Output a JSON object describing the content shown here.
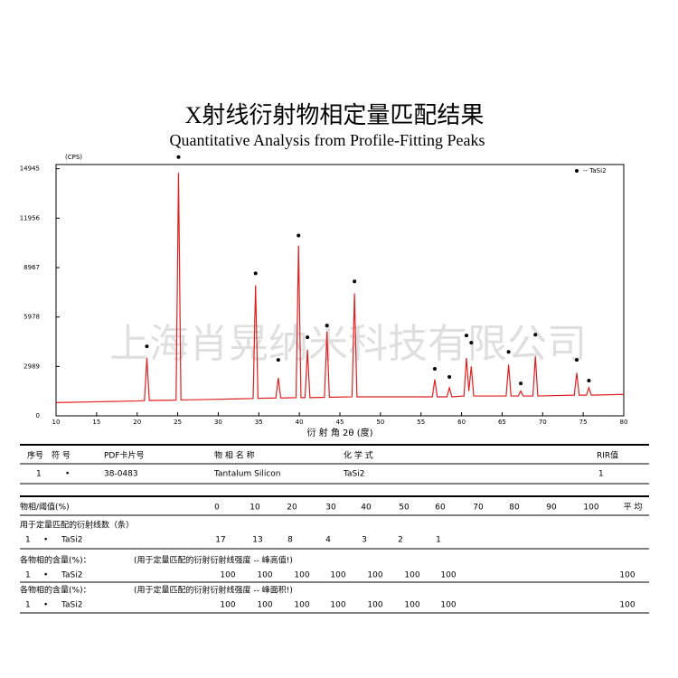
{
  "chart_data": {
    "type": "line",
    "title": "X射线衍射物相定量匹配结果",
    "subtitle": "Quantitative Analysis from Profile-Fitting Peaks",
    "x_label": "衍 射 角 2θ (度)",
    "y_label": "(CPS)",
    "xlim": [
      10,
      80
    ],
    "xticks": [
      10,
      15,
      20,
      25,
      30,
      35,
      40,
      45,
      50,
      55,
      60,
      65,
      70,
      75,
      80
    ],
    "ylim": [
      0,
      15200
    ],
    "yticks": [
      0,
      2989,
      5978,
      8967,
      11956,
      14945
    ],
    "legend": "top-right",
    "x": [
      10,
      15,
      20,
      20.9,
      21.2,
      21.5,
      24.8,
      25.1,
      25.4,
      30,
      34.3,
      34.6,
      34.9,
      37.1,
      37.4,
      37.7,
      39.6,
      39.9,
      40.2,
      40.7,
      41.0,
      41.3,
      43.1,
      43.4,
      43.7,
      46.5,
      46.8,
      47.1,
      52,
      56.4,
      56.7,
      57,
      58.2,
      58.5,
      58.8,
      60.3,
      60.6,
      60.9,
      61.2,
      61.5,
      65.5,
      65.8,
      66.1,
      67,
      67.3,
      67.6,
      68.8,
      69.1,
      69.4,
      73.9,
      74.2,
      74.5,
      75.4,
      75.7,
      76,
      80
    ],
    "series": [
      {
        "color": "#e02020",
        "values": [
          800,
          850,
          900,
          920,
          3500,
          930,
          950,
          14700,
          960,
          1000,
          1050,
          7900,
          1060,
          1080,
          2300,
          1080,
          1100,
          10300,
          1100,
          1100,
          4000,
          1100,
          1120,
          5100,
          1120,
          1150,
          7400,
          1150,
          1150,
          1150,
          2200,
          1150,
          1150,
          1700,
          1150,
          1200,
          3500,
          1500,
          3000,
          1200,
          1200,
          3100,
          1200,
          1200,
          1500,
          1200,
          1200,
          3600,
          1200,
          1250,
          2600,
          1250,
          1250,
          1700,
          1250,
          1300
        ]
      },
      {
        "name": "-- TaSi2",
        "type": "scatter",
        "color": "#000000",
        "x": [
          21.2,
          25.1,
          34.6,
          37.4,
          39.9,
          41.0,
          43.4,
          46.8,
          56.7,
          58.5,
          60.6,
          61.2,
          65.8,
          67.3,
          69.1,
          74.2,
          75.7
        ],
        "values": [
          4200,
          15650,
          8620,
          3380,
          10910,
          4750,
          5460,
          8130,
          2840,
          2350,
          4860,
          4420,
          3870,
          1960,
          4910,
          3380,
          2130
        ]
      }
    ]
  },
  "watermark": "上海肖晃纳米科技有限公司",
  "phase_table": {
    "headers": [
      "序号",
      "符 号",
      "PDF卡片号",
      "物 相 名 称",
      "化 学 式",
      "RIR值"
    ],
    "rows": [
      [
        1,
        "•",
        "38-0483",
        "Tantalum Silicon",
        "TaSi2",
        1
      ]
    ]
  },
  "thresholds": {
    "label": "物相/阈值(%)",
    "values": [
      0,
      10,
      20,
      30,
      40,
      50,
      60,
      70,
      80,
      90,
      100
    ],
    "average_label": "平 均"
  },
  "line_counts": {
    "title": "用于定量匹配的衍射线数（条）",
    "rows": [
      {
        "index": 1,
        "symbol": "•",
        "phase": "TaSi2",
        "values": [
          17,
          13,
          8,
          4,
          3,
          2,
          1
        ]
      }
    ]
  },
  "content_height": {
    "title": "各物相的含量(%)：",
    "note": "(用于定量匹配的衍射衍射线强度 -- 峰高值!)",
    "rows": [
      {
        "index": 1,
        "symbol": "•",
        "phase": "TaSi2",
        "values": [
          100,
          100,
          100,
          100,
          100,
          100,
          100
        ],
        "average": 100
      }
    ]
  },
  "content_area": {
    "title": "各物相的含量(%)：",
    "note": "(用于定量匹配的衍射衍射线强度 -- 峰面积!)",
    "rows": [
      {
        "index": 1,
        "symbol": "•",
        "phase": "TaSi2",
        "values": [
          100,
          100,
          100,
          100,
          100,
          100,
          100
        ],
        "average": 100
      }
    ]
  }
}
